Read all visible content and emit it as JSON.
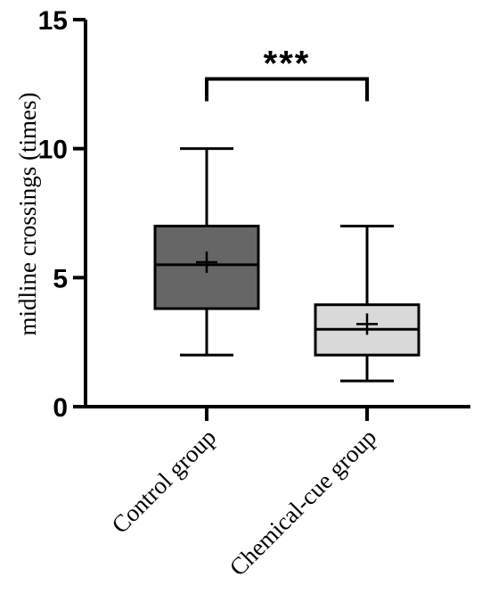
{
  "chart_data": {
    "type": "box",
    "ylabel": "midline crossings (times)",
    "xlabel": "",
    "ylim": [
      0,
      15
    ],
    "yticks": [
      0,
      5,
      10,
      15
    ],
    "categories": [
      "Control group",
      "Chemical-cue group"
    ],
    "boxes": [
      {
        "category": "Control group",
        "min": 2,
        "q1": 3.8,
        "median": 5.5,
        "q3": 7,
        "max": 10,
        "mean": 5.6,
        "fill": "#666666"
      },
      {
        "category": "Chemical-cue group",
        "min": 1,
        "q1": 2,
        "median": 3,
        "q3": 3.95,
        "max": 7,
        "mean": 3.2,
        "fill": "#d9d9d9"
      }
    ],
    "significance": {
      "between": [
        "Control group",
        "Chemical-cue group"
      ],
      "label": "***",
      "y": 12.7
    },
    "grid": false,
    "legend": false
  }
}
